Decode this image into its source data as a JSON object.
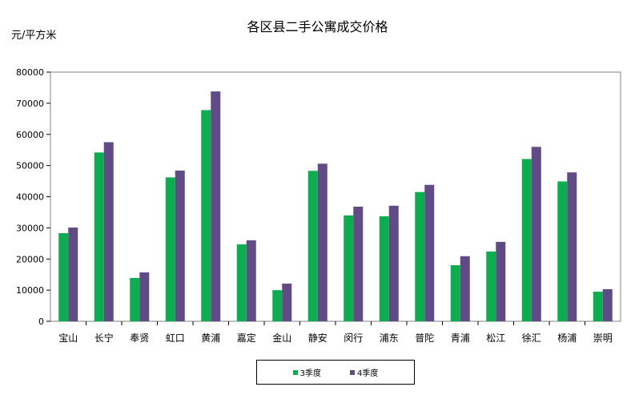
{
  "chart_data": {
    "type": "bar",
    "title": "各区县二手公寓成交价格",
    "ylabel": "元/平方米",
    "xlabel": "",
    "ylim": [
      0,
      80000
    ],
    "yticks": [
      0,
      10000,
      20000,
      30000,
      40000,
      50000,
      60000,
      70000,
      80000
    ],
    "grid": false,
    "legend_position": "bottom",
    "categories": [
      "宝山",
      "长宁",
      "奉贤",
      "虹口",
      "黄浦",
      "嘉定",
      "金山",
      "静安",
      "闵行",
      "浦东",
      "普陀",
      "青浦",
      "松江",
      "徐汇",
      "杨浦",
      "崇明"
    ],
    "series": [
      {
        "name": "3季度",
        "color": "#0BAE4E",
        "values": [
          28300,
          54200,
          13900,
          46200,
          67800,
          24700,
          10000,
          48300,
          34000,
          33700,
          41500,
          18000,
          22400,
          52100,
          44900,
          9500
        ]
      },
      {
        "name": "4季度",
        "color": "#604B87",
        "values": [
          30100,
          57500,
          15700,
          48400,
          73800,
          26000,
          12100,
          50600,
          36800,
          37100,
          43800,
          20900,
          25500,
          56000,
          47800,
          10300
        ]
      }
    ]
  }
}
